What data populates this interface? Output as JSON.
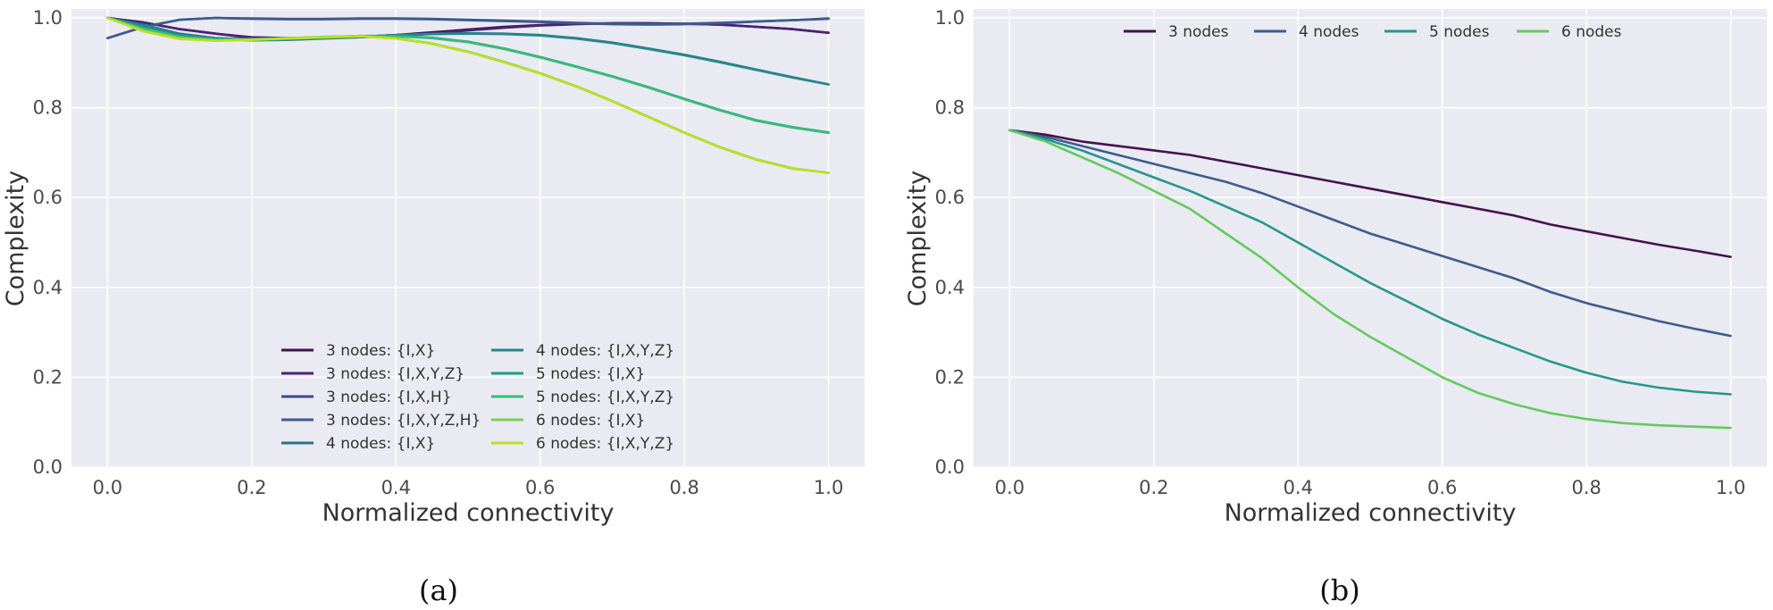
{
  "figure": {
    "caption_a": "(a)",
    "caption_b": "(b)"
  },
  "chart_data": [
    {
      "type": "line",
      "panel": "a",
      "xlabel": "Normalized connectivity",
      "ylabel": "Complexity",
      "xlim": [
        -0.05,
        1.05
      ],
      "ylim": [
        0.0,
        1.02
      ],
      "xticks": [
        0.0,
        0.2,
        0.4,
        0.6,
        0.8,
        1.0
      ],
      "xtick_labels": [
        "0.0",
        "0.2",
        "0.4",
        "0.6",
        "0.8",
        "1.0"
      ],
      "yticks": [
        0.0,
        0.2,
        0.4,
        0.6,
        0.8,
        1.0
      ],
      "ytick_labels": [
        "0.0",
        "0.2",
        "0.4",
        "0.6",
        "0.8",
        "1.0"
      ],
      "grid": true,
      "legend_position": "lower-center",
      "legend_columns": 2,
      "x": [
        0.0,
        0.05,
        0.1,
        0.15,
        0.2,
        0.25,
        0.3,
        0.35,
        0.4,
        0.45,
        0.5,
        0.55,
        0.6,
        0.65,
        0.7,
        0.75,
        0.8,
        0.85,
        0.9,
        0.95,
        1.0
      ],
      "series": [
        {
          "name": "3 nodes: {I,X}",
          "color": "#45104f",
          "values": [
            1.0,
            0.99,
            0.975,
            0.965,
            0.955,
            0.953,
            0.955,
            0.958,
            0.962,
            0.968,
            0.974,
            0.98,
            0.984,
            0.987,
            0.988,
            0.988,
            0.987,
            0.985,
            0.98,
            0.975,
            0.967
          ]
        },
        {
          "name": "3 nodes: {I,X,Y,Z}",
          "color": "#482374",
          "values": [
            1.0,
            0.99,
            0.975,
            0.965,
            0.957,
            0.955,
            0.955,
            0.957,
            0.96,
            0.965,
            0.972,
            0.978,
            0.983,
            0.986,
            0.988,
            0.988,
            0.987,
            0.985,
            0.98,
            0.975,
            0.967
          ]
        },
        {
          "name": "3 nodes: {I,X,H}",
          "color": "#3f4b8a",
          "values": [
            0.955,
            0.98,
            0.996,
            1.0,
            0.998,
            0.997,
            0.997,
            0.998,
            0.998,
            0.997,
            0.995,
            0.993,
            0.991,
            0.988,
            0.986,
            0.985,
            0.986,
            0.988,
            0.992,
            0.995,
            0.998
          ]
        },
        {
          "name": "3 nodes: {I,X,Y,Z,H}",
          "color": "#3b5c8d",
          "values": [
            0.955,
            0.98,
            0.996,
            1.0,
            0.999,
            0.998,
            0.998,
            0.999,
            0.999,
            0.998,
            0.996,
            0.994,
            0.992,
            0.989,
            0.987,
            0.986,
            0.987,
            0.989,
            0.992,
            0.995,
            0.999
          ]
        },
        {
          "name": "4 nodes: {I,X}",
          "color": "#2d7188",
          "values": [
            1.0,
            0.985,
            0.965,
            0.955,
            0.952,
            0.953,
            0.955,
            0.958,
            0.962,
            0.965,
            0.966,
            0.965,
            0.962,
            0.955,
            0.945,
            0.932,
            0.918,
            0.902,
            0.885,
            0.868,
            0.852
          ]
        },
        {
          "name": "4 nodes: {I,X,Y,Z}",
          "color": "#24878e",
          "values": [
            1.0,
            0.983,
            0.963,
            0.953,
            0.95,
            0.951,
            0.954,
            0.957,
            0.961,
            0.964,
            0.965,
            0.964,
            0.961,
            0.954,
            0.944,
            0.931,
            0.917,
            0.901,
            0.884,
            0.867,
            0.852
          ]
        },
        {
          "name": "5 nodes: {I,X}",
          "color": "#1f9e89",
          "values": [
            1.0,
            0.978,
            0.96,
            0.953,
            0.953,
            0.955,
            0.957,
            0.96,
            0.96,
            0.956,
            0.947,
            0.932,
            0.913,
            0.892,
            0.87,
            0.846,
            0.82,
            0.795,
            0.772,
            0.757,
            0.745
          ]
        },
        {
          "name": "5 nodes: {I,X,Y,Z}",
          "color": "#3bbb75",
          "values": [
            1.0,
            0.976,
            0.958,
            0.952,
            0.952,
            0.954,
            0.956,
            0.959,
            0.959,
            0.955,
            0.946,
            0.931,
            0.912,
            0.891,
            0.869,
            0.845,
            0.819,
            0.794,
            0.771,
            0.756,
            0.744
          ]
        },
        {
          "name": "6 nodes: {I,X}",
          "color": "#7ad151",
          "values": [
            1.0,
            0.972,
            0.955,
            0.95,
            0.952,
            0.955,
            0.958,
            0.96,
            0.955,
            0.943,
            0.925,
            0.902,
            0.877,
            0.848,
            0.815,
            0.78,
            0.745,
            0.712,
            0.685,
            0.665,
            0.655
          ]
        },
        {
          "name": "6 nodes: {I,X,Y,Z}",
          "color": "#bddf26",
          "values": [
            1.0,
            0.97,
            0.953,
            0.949,
            0.951,
            0.954,
            0.957,
            0.959,
            0.954,
            0.942,
            0.924,
            0.901,
            0.876,
            0.847,
            0.814,
            0.779,
            0.744,
            0.711,
            0.684,
            0.664,
            0.655
          ]
        }
      ]
    },
    {
      "type": "line",
      "panel": "b",
      "xlabel": "Normalized connectivity",
      "ylabel": "Complexity",
      "xlim": [
        -0.05,
        1.05
      ],
      "ylim": [
        0.0,
        1.02
      ],
      "xticks": [
        0.0,
        0.2,
        0.4,
        0.6,
        0.8,
        1.0
      ],
      "xtick_labels": [
        "0.0",
        "0.2",
        "0.4",
        "0.6",
        "0.8",
        "1.0"
      ],
      "yticks": [
        0.0,
        0.2,
        0.4,
        0.6,
        0.8,
        1.0
      ],
      "ytick_labels": [
        "0.0",
        "0.2",
        "0.4",
        "0.6",
        "0.8",
        "1.0"
      ],
      "grid": true,
      "legend_position": "top-center",
      "legend_columns": 4,
      "x": [
        0.0,
        0.05,
        0.1,
        0.15,
        0.2,
        0.25,
        0.3,
        0.35,
        0.4,
        0.45,
        0.5,
        0.55,
        0.6,
        0.65,
        0.7,
        0.75,
        0.8,
        0.85,
        0.9,
        0.95,
        1.0
      ],
      "series": [
        {
          "name": "3 nodes",
          "color": "#45104f",
          "values": [
            0.75,
            0.74,
            0.725,
            0.715,
            0.705,
            0.695,
            0.68,
            0.665,
            0.65,
            0.635,
            0.62,
            0.605,
            0.59,
            0.575,
            0.56,
            0.54,
            0.525,
            0.51,
            0.495,
            0.482,
            0.468
          ]
        },
        {
          "name": "4 nodes",
          "color": "#3b5c8d",
          "values": [
            0.75,
            0.735,
            0.715,
            0.695,
            0.675,
            0.655,
            0.635,
            0.61,
            0.58,
            0.55,
            0.52,
            0.495,
            0.47,
            0.445,
            0.42,
            0.39,
            0.365,
            0.345,
            0.325,
            0.308,
            0.292
          ]
        },
        {
          "name": "5 nodes",
          "color": "#23978b",
          "values": [
            0.75,
            0.73,
            0.705,
            0.675,
            0.645,
            0.615,
            0.58,
            0.545,
            0.5,
            0.455,
            0.41,
            0.37,
            0.33,
            0.295,
            0.265,
            0.235,
            0.21,
            0.19,
            0.177,
            0.168,
            0.162
          ]
        },
        {
          "name": "6 nodes",
          "color": "#62cb5c",
          "values": [
            0.75,
            0.725,
            0.69,
            0.655,
            0.615,
            0.575,
            0.52,
            0.465,
            0.4,
            0.34,
            0.29,
            0.245,
            0.2,
            0.165,
            0.14,
            0.12,
            0.107,
            0.098,
            0.093,
            0.09,
            0.087
          ]
        }
      ]
    }
  ]
}
